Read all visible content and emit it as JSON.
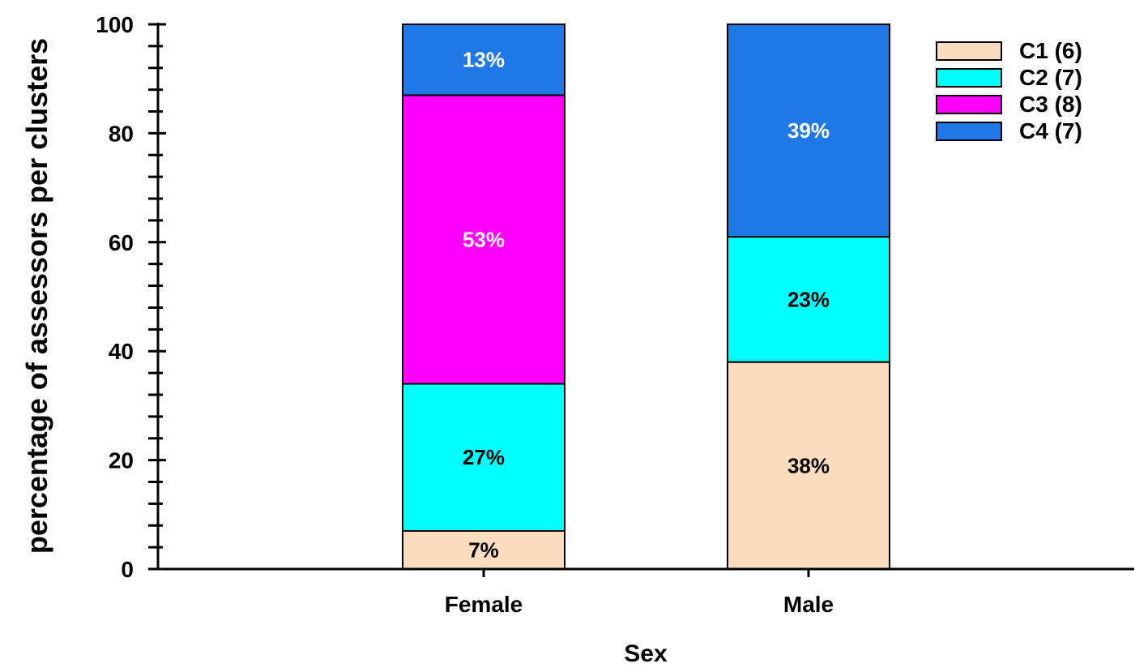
{
  "chart_data": {
    "type": "bar",
    "stacked": true,
    "categories": [
      "Female",
      "Male"
    ],
    "series": [
      {
        "name": "C1 (6)",
        "color": "#fbdcbe",
        "values": [
          7,
          38
        ],
        "labels": [
          "7%",
          "38%"
        ],
        "label_color": "#000000"
      },
      {
        "name": "C2 (7)",
        "color": "#00ffff",
        "values": [
          27,
          23
        ],
        "labels": [
          "27%",
          "23%"
        ],
        "label_color": "#000000"
      },
      {
        "name": "C3 (8)",
        "color": "#ff00ff",
        "values": [
          53,
          0
        ],
        "labels": [
          "53%",
          ""
        ],
        "label_color": "#ffffff"
      },
      {
        "name": "C4 (7)",
        "color": "#1f78e6",
        "values": [
          13,
          39
        ],
        "labels": [
          "13%",
          "39%"
        ],
        "label_color": "#ffffff"
      }
    ],
    "xlabel": "Sex",
    "ylabel": "percentage of assessors per clusters",
    "ylim": [
      0,
      100
    ],
    "yticks": [
      "0",
      "20",
      "40",
      "60",
      "80",
      "100"
    ],
    "legend_position": "top-right",
    "grid": false
  }
}
